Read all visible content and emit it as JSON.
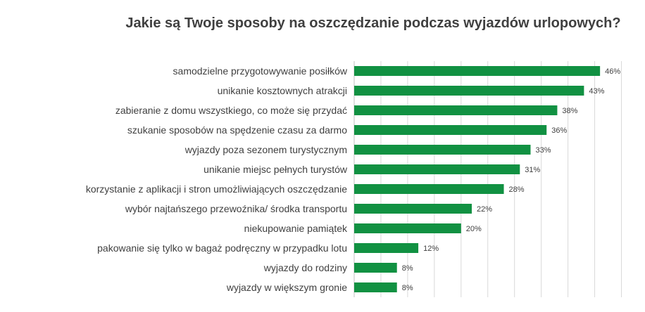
{
  "chart_data": {
    "type": "bar",
    "orientation": "horizontal",
    "title": "Jakie są Twoje  sposoby na oszczędzanie podczas wyjazdów urlopowych?",
    "xlabel": "",
    "ylabel": "",
    "xlim": [
      0,
      50
    ],
    "grid": true,
    "legend": "none",
    "bar_color": "#119142",
    "value_suffix": "%",
    "categories": [
      "samodzielne przygotowywanie posiłków",
      "unikanie kosztownych atrakcji",
      "zabieranie z domu wszystkiego, co może się przydać",
      "szukanie sposobów na spędzenie czasu za darmo",
      "wyjazdy poza sezonem turystycznym",
      "unikanie miejsc pełnych turystów",
      "korzystanie z aplikacji i stron umożliwiających oszczędzanie",
      "wybór najtańszego przewoźnika/ środka transportu",
      "niekupowanie pamiątek",
      "pakowanie się tylko w bagaż podręczny w przypadku lotu",
      "wyjazdy do rodziny",
      "wyjazdy w większym gronie"
    ],
    "values": [
      46,
      43,
      38,
      36,
      33,
      31,
      28,
      22,
      20,
      12,
      8,
      8
    ],
    "value_labels": [
      "46%",
      "43%",
      "38%",
      "36%",
      "33%",
      "31%",
      "28%",
      "22%",
      "20%",
      "12%",
      "8%",
      "8%"
    ]
  }
}
